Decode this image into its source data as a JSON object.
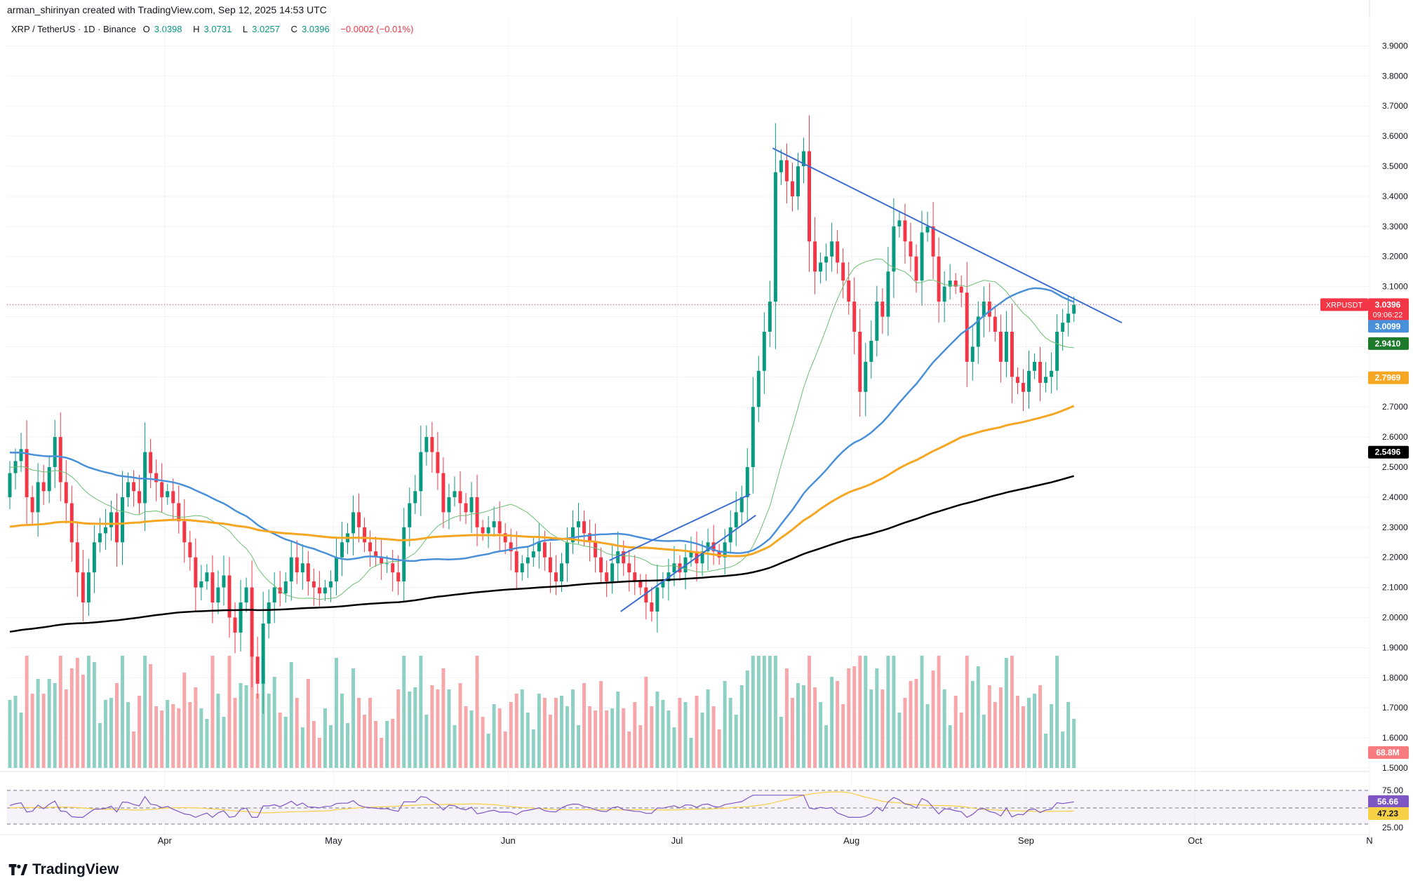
{
  "credit": "arman_shirinyan created with TradingView.com, Sep 12, 2025 14:53 UTC",
  "symbol": {
    "title": "XRP / TetherUS · 1D · Binance",
    "o_label": "O",
    "o": "3.0398",
    "h_label": "H",
    "h": "3.0731",
    "l_label": "L",
    "l": "3.0257",
    "c_label": "C",
    "c": "3.0396",
    "change": "−0.0002 (−0.01%)"
  },
  "brand": "TradingView",
  "colors": {
    "up": "#089981",
    "down": "#f23645",
    "ma20": "#6cbf72",
    "ma50": "#4a90d9",
    "ma100": "#f5a623",
    "ma200": "#000000",
    "trendline": "#3d6fd1",
    "rsi": "#7e57c2",
    "rsi_ma": "#f7d046"
  },
  "price_axis": {
    "ticks": [
      "3.9000",
      "3.8000",
      "3.7000",
      "3.6000",
      "3.5000",
      "3.4000",
      "3.3000",
      "3.2000",
      "3.1000",
      "3.0000",
      "2.9000",
      "2.8000",
      "2.7000",
      "2.6000",
      "2.5000",
      "2.4000",
      "2.3000",
      "2.2000",
      "2.1000",
      "2.0000",
      "1.9000",
      "1.8000",
      "1.7000",
      "1.6000",
      "1.5000"
    ],
    "badges": [
      {
        "label": "XRPUSDT",
        "value": "3.0396",
        "countdown": "09:06:22",
        "color": "#f23645"
      },
      {
        "value": "3.0099",
        "color": "#4a90d9"
      },
      {
        "value": "2.9410",
        "color": "#1e7a2b"
      },
      {
        "value": "2.7969",
        "color": "#f5a623"
      },
      {
        "value": "2.5496",
        "color": "#000000"
      },
      {
        "value": "68.8M",
        "color": "#f77c80"
      }
    ]
  },
  "rsi_axis": {
    "ticks": [
      "75.00",
      "25.00"
    ],
    "badges": [
      {
        "value": "56.66",
        "color": "#7e57c2"
      },
      {
        "value": "47.23",
        "color": "#f7d046"
      }
    ]
  },
  "time_axis": [
    "Apr",
    "May",
    "Jun",
    "Jul",
    "Aug",
    "Sep",
    "Oct",
    "N"
  ],
  "chart_data": {
    "type": "candlestick",
    "ylim": [
      1.5,
      3.95
    ],
    "x_start": "2025-03-04",
    "x_end": "2025-11-01",
    "candles_close": [
      2.48,
      2.52,
      2.56,
      2.4,
      2.35,
      2.45,
      2.42,
      2.5,
      2.6,
      2.45,
      2.38,
      2.25,
      2.15,
      2.05,
      2.15,
      2.25,
      2.28,
      2.3,
      2.35,
      2.25,
      2.4,
      2.45,
      2.42,
      2.38,
      2.55,
      2.48,
      2.45,
      2.4,
      2.42,
      2.38,
      2.32,
      2.25,
      2.2,
      2.1,
      2.12,
      2.15,
      2.05,
      2.1,
      2.14,
      2.0,
      1.95,
      2.05,
      2.1,
      1.87,
      1.78,
      1.98,
      2.05,
      2.1,
      2.08,
      2.12,
      2.2,
      2.15,
      2.18,
      2.12,
      2.1,
      2.08,
      2.1,
      2.12,
      2.2,
      2.25,
      2.28,
      2.35,
      2.3,
      2.25,
      2.22,
      2.2,
      2.18,
      2.18,
      2.15,
      2.12,
      2.3,
      2.38,
      2.42,
      2.55,
      2.6,
      2.55,
      2.48,
      2.35,
      2.4,
      2.42,
      2.38,
      2.35,
      2.4,
      2.3,
      2.28,
      2.3,
      2.32,
      2.28,
      2.25,
      2.22,
      2.15,
      2.18,
      2.2,
      2.22,
      2.25,
      2.2,
      2.15,
      2.12,
      2.18,
      2.25,
      2.3,
      2.32,
      2.28,
      2.25,
      2.2,
      2.15,
      2.12,
      2.18,
      2.22,
      2.18,
      2.15,
      2.12,
      2.1,
      2.05,
      2.02,
      2.1,
      2.12,
      2.15,
      2.18,
      2.15,
      2.2,
      2.22,
      2.18,
      2.22,
      2.25,
      2.22,
      2.2,
      2.25,
      2.3,
      2.35,
      2.4,
      2.5,
      2.7,
      2.82,
      2.95,
      3.05,
      3.48,
      3.52,
      3.45,
      3.4,
      3.5,
      3.55,
      3.25,
      3.15,
      3.18,
      3.2,
      3.25,
      3.18,
      3.12,
      3.05,
      2.95,
      2.75,
      2.85,
      2.92,
      3.05,
      3.0,
      3.15,
      3.3,
      3.32,
      3.25,
      3.2,
      3.12,
      3.28,
      3.3,
      3.2,
      3.05,
      3.1,
      3.12,
      3.1,
      3.08,
      2.85,
      2.9,
      3.0,
      3.05,
      3.0,
      2.95,
      2.85,
      2.95,
      2.8,
      2.78,
      2.75,
      2.82,
      2.85,
      2.78,
      2.8,
      2.82,
      2.95,
      2.98,
      3.01,
      3.04
    ]
  }
}
